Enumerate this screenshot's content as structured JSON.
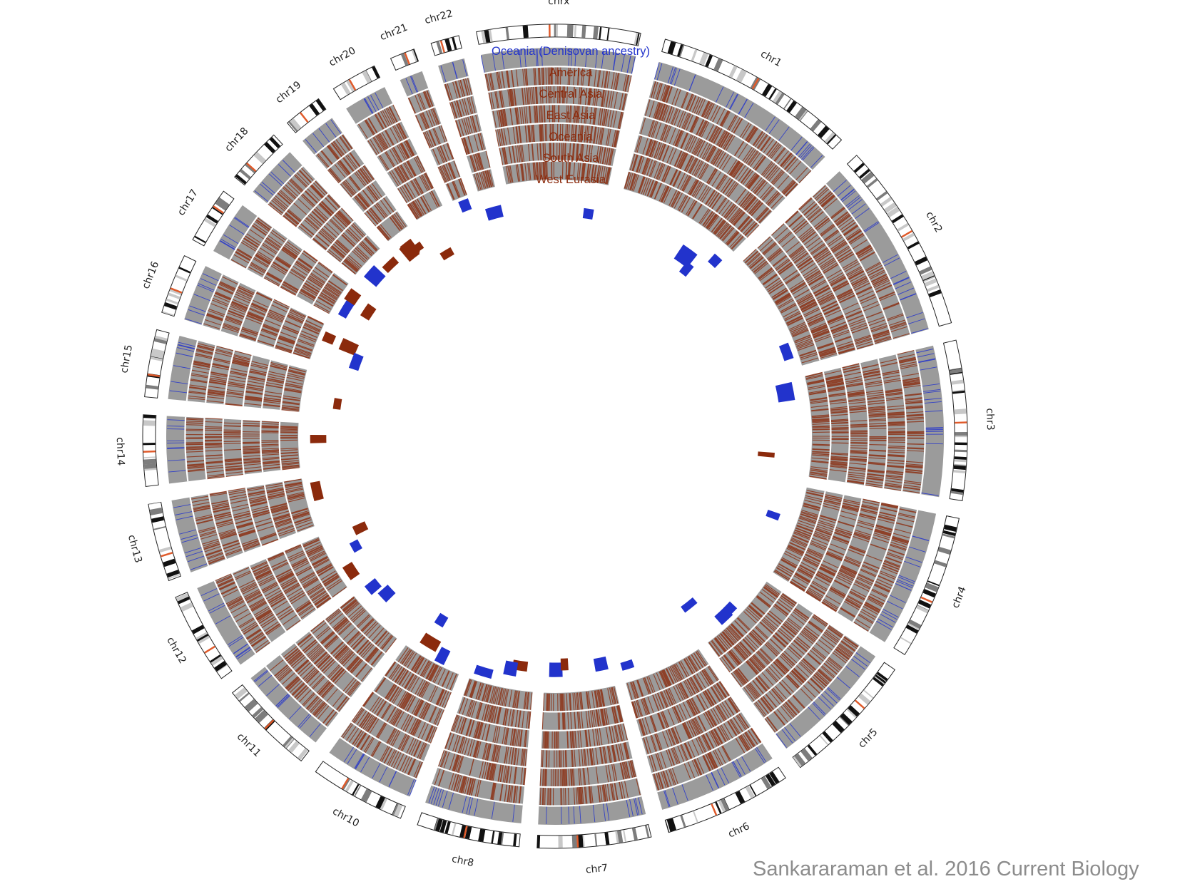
{
  "legend": {
    "title": "Oceania (Denisovan ancestry)",
    "items": [
      "America",
      "Central Asia",
      "East Asia",
      "Oceania",
      "South Asia",
      "West Eurasia"
    ]
  },
  "citation": "Sankararaman et al. 2016 Current Biology",
  "colors": {
    "track_bg": "#9b9b9b",
    "neanderthal": "#8b2a0c",
    "denisovan": "#2233cc",
    "ring_separator": "#ffffff",
    "centromere": "#e05a2a"
  },
  "chromosomes": [
    {
      "label": "chr1",
      "start": 15.5,
      "end": 44
    },
    {
      "label": "chr2",
      "start": 47,
      "end": 74
    },
    {
      "label": "chr3",
      "start": 76.5,
      "end": 99
    },
    {
      "label": "chr4",
      "start": 101.5,
      "end": 122
    },
    {
      "label": "chr5",
      "start": 124.5,
      "end": 143.5
    },
    {
      "label": "chr6",
      "start": 146,
      "end": 164
    },
    {
      "label": "chr7",
      "start": 166.5,
      "end": 182.5
    },
    {
      "label": "chr8",
      "start": 185,
      "end": 199.5
    },
    {
      "label": "chr10",
      "start": 202,
      "end": 215.5
    },
    {
      "label": "chr11",
      "start": 218,
      "end": 231.5
    },
    {
      "label": "chr12",
      "start": 234,
      "end": 247
    },
    {
      "label": "chr13",
      "start": 249.5,
      "end": 260.5
    },
    {
      "label": "chr14",
      "start": 263,
      "end": 273
    },
    {
      "label": "chr15",
      "start": 275.5,
      "end": 285
    },
    {
      "label": "chr16",
      "start": 287.5,
      "end": 296
    },
    {
      "label": "chr17",
      "start": 298.5,
      "end": 306.5
    },
    {
      "label": "chr18",
      "start": 309,
      "end": 317
    },
    {
      "label": "chr19",
      "start": 319.5,
      "end": 325
    },
    {
      "label": "chr20",
      "start": 327.5,
      "end": 334
    },
    {
      "label": "chr21",
      "start": 336.5,
      "end": 340
    },
    {
      "label": "chr22",
      "start": 342.5,
      "end": 346.5
    },
    {
      "label": "chrx",
      "start": 349,
      "end": 372
    }
  ]
}
